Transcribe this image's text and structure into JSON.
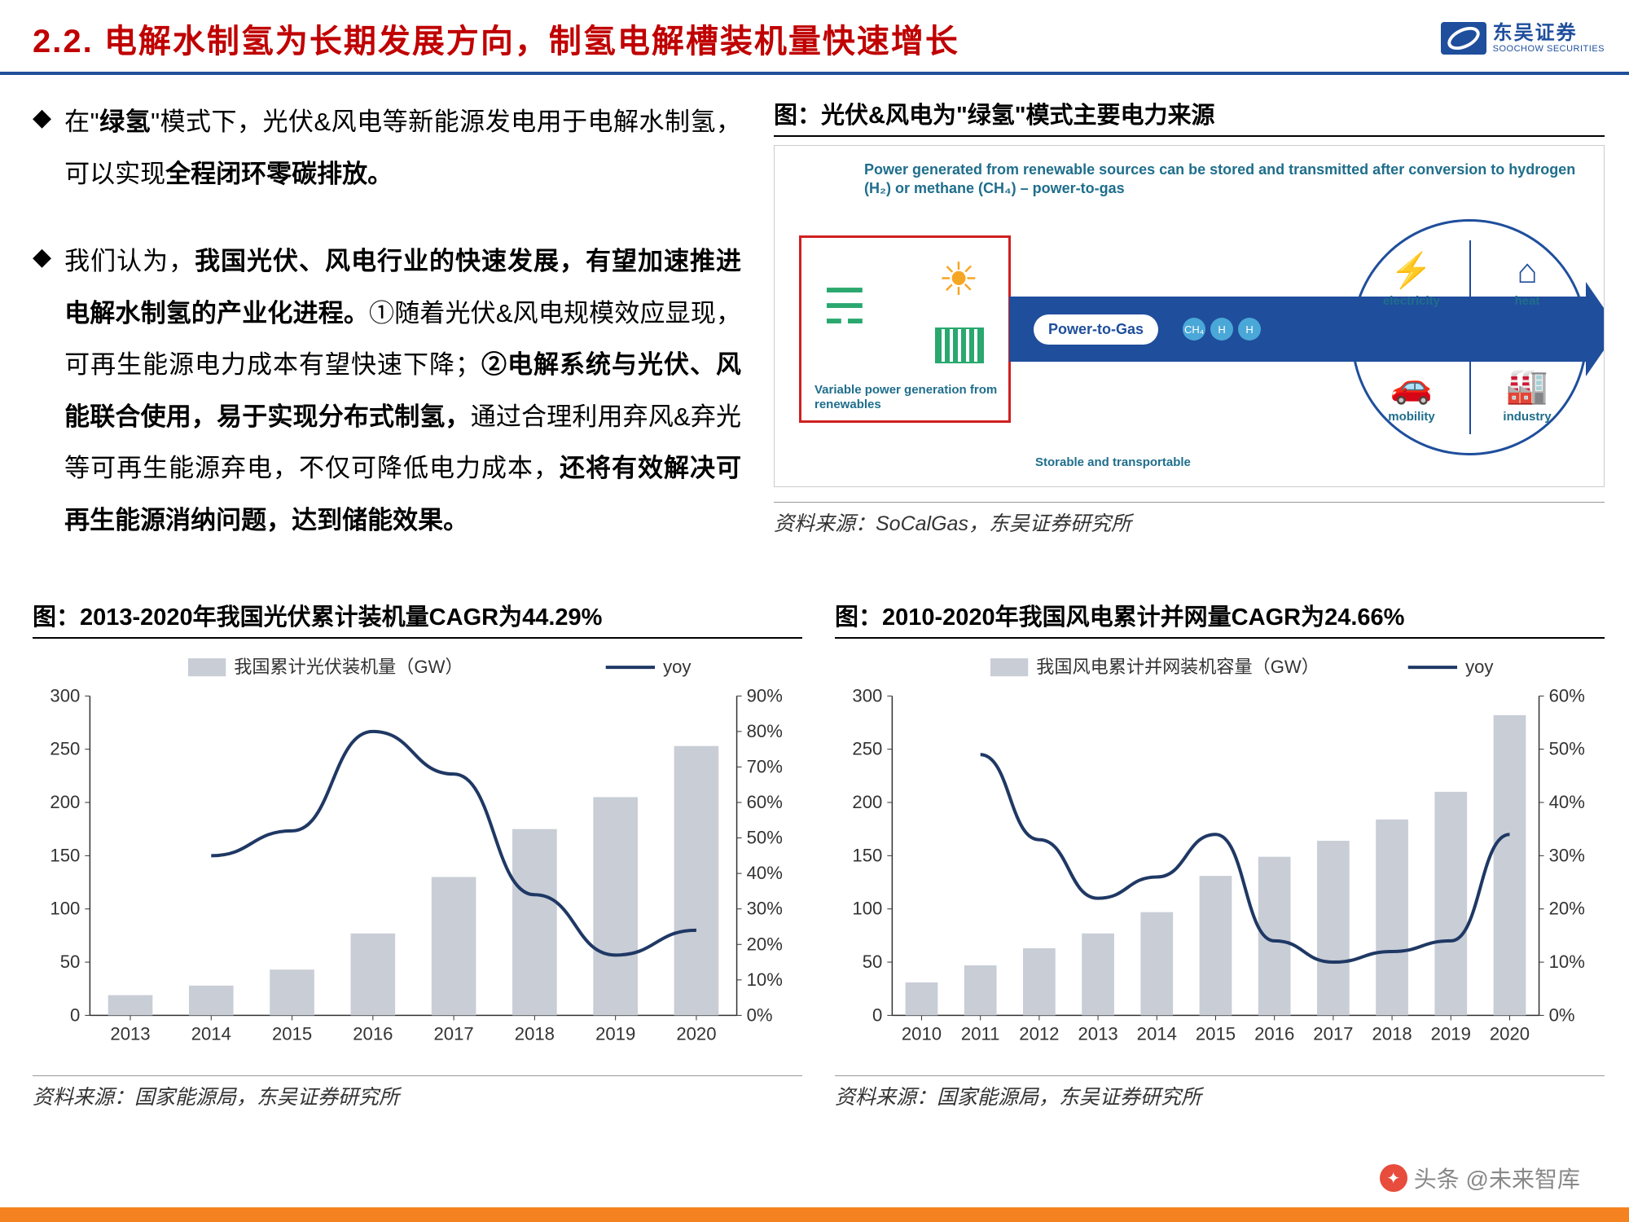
{
  "header": {
    "section_no": "2.2.",
    "title": "电解水制氢为长期发展方向，制氢电解槽装机量快速增长",
    "logo_cn": "东吴证券",
    "logo_en": "SOOCHOW SECURITIES"
  },
  "bullets": [
    {
      "prefix": "在",
      "quote_open": "\"",
      "bold1": "绿氢",
      "quote_close": "\"",
      "mid": "模式下，光伏&风电等新能源发电用于电解水制氢，可以实现",
      "bold2": "全程闭环零碳排放。"
    },
    {
      "prefix": "我们认为，",
      "bold1": "我国光伏、风电行业的快速发展，有望加速推进电解水制氢的产业化进程。",
      "mid1": "①随着光伏&风电规模效应显现，可再生能源电力成本有望快速下降；",
      "bold2": "②电解系统与光伏、风能联合使用，易于实现分布式制氢，",
      "mid2": "通过合理利用弃风&弃光等可再生能源弃电，不仅可降低电力成本，",
      "bold3": "还将有效解决可再生能源消纳问题，达到储能效果。"
    }
  ],
  "fig1": {
    "title": "图：光伏&风电为\"绿氢\"模式主要电力来源",
    "caption": "Power generated from renewable sources can be stored and transmitted after conversion to hydrogen (H₂) or methane (CH₄) – power-to-gas",
    "renew_label": "Variable power generation from renewables",
    "ptg_label": "Power-to-Gas",
    "storable_label": "Storable and transportable",
    "grid": [
      "electricity",
      "heat",
      "mobility",
      "industry"
    ],
    "grid_icons": [
      "⚡",
      "⌂",
      "🚗",
      "🏭"
    ],
    "source": "资料来源：SoCalGas，东吴证券研究所"
  },
  "chart_left": {
    "title": "图：2013-2020年我国光伏累计装机量CAGR为44.29%",
    "legend_bar": "我国累计光伏装机量（GW）",
    "legend_line": "yoy",
    "categories": [
      "2013",
      "2014",
      "2015",
      "2016",
      "2017",
      "2018",
      "2019",
      "2020"
    ],
    "bar_values": [
      19,
      28,
      43,
      77,
      130,
      175,
      205,
      253
    ],
    "yoy_values": [
      null,
      45,
      52,
      80,
      68,
      34,
      17,
      24
    ],
    "y_left": {
      "min": 0,
      "max": 300,
      "step": 50
    },
    "y_right": {
      "min": 0,
      "max": 90,
      "step": 10,
      "suffix": "%"
    },
    "bar_color": "#c8cdd6",
    "line_color": "#1f3864",
    "axis_color": "#333",
    "font_size": 22,
    "source": "资料来源：国家能源局，东吴证券研究所"
  },
  "chart_right": {
    "title": "图：2010-2020年我国风电累计并网量CAGR为24.66%",
    "legend_bar": "我国风电累计并网装机容量（GW）",
    "legend_line": "yoy",
    "categories": [
      "2010",
      "2011",
      "2012",
      "2013",
      "2014",
      "2015",
      "2016",
      "2017",
      "2018",
      "2019",
      "2020"
    ],
    "bar_values": [
      31,
      47,
      63,
      77,
      97,
      131,
      149,
      164,
      184,
      210,
      282
    ],
    "yoy_values": [
      null,
      49,
      33,
      22,
      26,
      34,
      14,
      10,
      12,
      14,
      34
    ],
    "y_left": {
      "min": 0,
      "max": 300,
      "step": 50
    },
    "y_right": {
      "min": 0,
      "max": 60,
      "step": 10,
      "suffix": "%"
    },
    "bar_color": "#c8cdd6",
    "line_color": "#1f3864",
    "axis_color": "#333",
    "font_size": 22,
    "source": "资料来源：国家能源局，东吴证券研究所"
  },
  "watermark": "头条 @未来智库"
}
